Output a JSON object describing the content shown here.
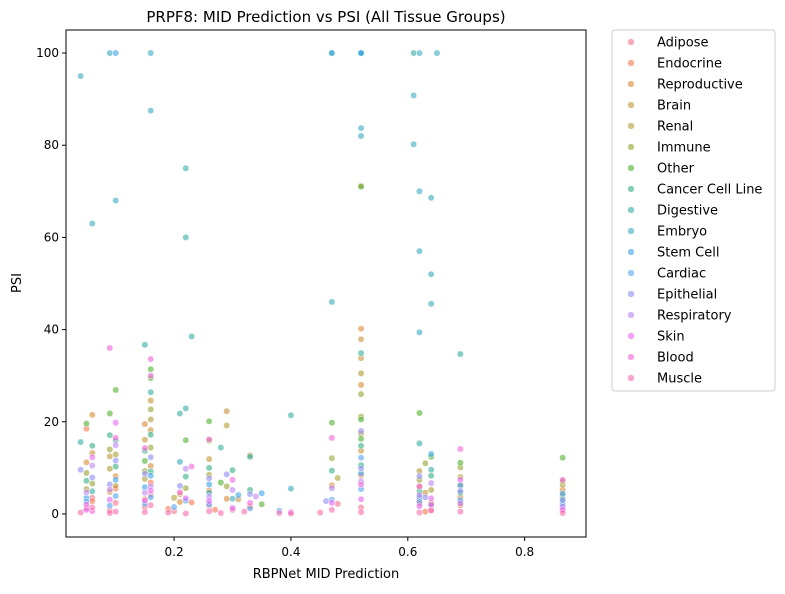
{
  "chart_data": {
    "type": "scatter",
    "title": "PRPF8: MID Prediction vs PSI (All Tissue Groups)",
    "xlabel": "RBPNet MID Prediction",
    "ylabel": "PSI",
    "xlim": [
      0.015,
      0.905
    ],
    "ylim": [
      -5,
      105
    ],
    "xticks": [
      0.2,
      0.4,
      0.6,
      0.8
    ],
    "xtick_labels": [
      "0.2",
      "0.4",
      "0.6",
      "0.8"
    ],
    "yticks": [
      0,
      20,
      40,
      60,
      80,
      100
    ],
    "ytick_labels": [
      "0",
      "20",
      "40",
      "60",
      "80",
      "100"
    ],
    "grid": false,
    "legend_position": "outside-right",
    "series": [
      {
        "name": "Adipose",
        "color": "#f77189",
        "points": [
          [
            0.05,
            1.2
          ],
          [
            0.06,
            3.5
          ],
          [
            0.09,
            0.8
          ],
          [
            0.1,
            2.4
          ],
          [
            0.15,
            1.5
          ],
          [
            0.16,
            4.2
          ],
          [
            0.2,
            0.6
          ],
          [
            0.26,
            1.8
          ],
          [
            0.3,
            0.9
          ],
          [
            0.48,
            2.2
          ],
          [
            0.52,
            1.4
          ],
          [
            0.62,
            3.1
          ],
          [
            0.64,
            0.7
          ],
          [
            0.69,
            2.6
          ],
          [
            0.865,
            1.0
          ]
        ]
      },
      {
        "name": "Endocrine",
        "color": "#f7754f",
        "points": [
          [
            0.05,
            18.5
          ],
          [
            0.06,
            2.8
          ],
          [
            0.1,
            5.5
          ],
          [
            0.15,
            3.2
          ],
          [
            0.16,
            6.8
          ],
          [
            0.19,
            1.1
          ],
          [
            0.23,
            2.5
          ],
          [
            0.27,
            0.9
          ],
          [
            0.33,
            1.6
          ],
          [
            0.52,
            8.4
          ],
          [
            0.62,
            2.2
          ],
          [
            0.63,
            0.5
          ],
          [
            0.69,
            1.9
          ]
        ]
      },
      {
        "name": "Reproductive",
        "color": "#dc8932",
        "points": [
          [
            0.05,
            11.2
          ],
          [
            0.06,
            21.5
          ],
          [
            0.09,
            4.8
          ],
          [
            0.1,
            8.2
          ],
          [
            0.15,
            19.5
          ],
          [
            0.16,
            10.4
          ],
          [
            0.21,
            2.6
          ],
          [
            0.26,
            5.1
          ],
          [
            0.29,
            3.3
          ],
          [
            0.47,
            6.2
          ],
          [
            0.52,
            71.2
          ],
          [
            0.52,
            40.2
          ],
          [
            0.52,
            28.0
          ],
          [
            0.62,
            5.8
          ],
          [
            0.64,
            2.4
          ],
          [
            0.69,
            3.7
          ],
          [
            0.865,
            5.2
          ]
        ]
      },
      {
        "name": "Brain",
        "color": "#c39532",
        "points": [
          [
            0.06,
            13.2
          ],
          [
            0.09,
            12.5
          ],
          [
            0.1,
            6.1
          ],
          [
            0.15,
            16.1
          ],
          [
            0.16,
            24.6
          ],
          [
            0.16,
            18.2
          ],
          [
            0.21,
            4.3
          ],
          [
            0.26,
            11.9
          ],
          [
            0.29,
            22.3
          ],
          [
            0.31,
            3.2
          ],
          [
            0.52,
            37.9
          ],
          [
            0.52,
            33.8
          ],
          [
            0.52,
            13.7
          ],
          [
            0.63,
            4.6
          ],
          [
            0.69,
            6.3
          ],
          [
            0.865,
            4.1
          ]
        ]
      },
      {
        "name": "Renal",
        "color": "#ae9d31",
        "points": [
          [
            0.05,
            5.4
          ],
          [
            0.09,
            9.8
          ],
          [
            0.1,
            12.9
          ],
          [
            0.15,
            7.6
          ],
          [
            0.16,
            20.5
          ],
          [
            0.2,
            3.5
          ],
          [
            0.26,
            8.5
          ],
          [
            0.29,
            19.2
          ],
          [
            0.33,
            12.7
          ],
          [
            0.48,
            7.8
          ],
          [
            0.52,
            30.5
          ],
          [
            0.52,
            17.4
          ],
          [
            0.62,
            9.3
          ],
          [
            0.64,
            5.2
          ],
          [
            0.69,
            8.0
          ],
          [
            0.865,
            6.3
          ]
        ]
      },
      {
        "name": "Immune",
        "color": "#97a431",
        "points": [
          [
            0.05,
            8.9
          ],
          [
            0.06,
            6.6
          ],
          [
            0.09,
            14.0
          ],
          [
            0.15,
            9.3
          ],
          [
            0.16,
            22.7
          ],
          [
            0.16,
            14.4
          ],
          [
            0.22,
            5.6
          ],
          [
            0.26,
            15.9
          ],
          [
            0.29,
            6.0
          ],
          [
            0.47,
            12.1
          ],
          [
            0.52,
            26.0
          ],
          [
            0.52,
            21.1
          ],
          [
            0.62,
            7.4
          ],
          [
            0.63,
            11.0
          ],
          [
            0.69,
            10.1
          ],
          [
            0.865,
            7.1
          ]
        ]
      },
      {
        "name": "Other",
        "color": "#50b131",
        "points": [
          [
            0.05,
            19.6
          ],
          [
            0.09,
            21.8
          ],
          [
            0.1,
            26.9
          ],
          [
            0.15,
            11.5
          ],
          [
            0.16,
            31.4
          ],
          [
            0.16,
            29.5
          ],
          [
            0.22,
            16.0
          ],
          [
            0.26,
            20.1
          ],
          [
            0.28,
            6.8
          ],
          [
            0.35,
            2.1
          ],
          [
            0.47,
            19.8
          ],
          [
            0.52,
            71.0
          ],
          [
            0.52,
            20.5
          ],
          [
            0.52,
            16.3
          ],
          [
            0.62,
            21.9
          ],
          [
            0.64,
            12.4
          ],
          [
            0.69,
            11.1
          ],
          [
            0.865,
            12.2
          ]
        ]
      },
      {
        "name": "Cancer Cell Line",
        "color": "#34af84",
        "points": [
          [
            0.05,
            7.2
          ],
          [
            0.06,
            14.8
          ],
          [
            0.09,
            17.1
          ],
          [
            0.1,
            10.3
          ],
          [
            0.15,
            13.7
          ],
          [
            0.16,
            17.2
          ],
          [
            0.16,
            9.2
          ],
          [
            0.22,
            8.1
          ],
          [
            0.26,
            10.0
          ],
          [
            0.3,
            9.5
          ],
          [
            0.33,
            5.2
          ],
          [
            0.47,
            9.4
          ],
          [
            0.52,
            14.8
          ],
          [
            0.52,
            10.6
          ],
          [
            0.62,
            4.9
          ],
          [
            0.64,
            8.3
          ],
          [
            0.69,
            4.6
          ],
          [
            0.865,
            3.4
          ]
        ]
      },
      {
        "name": "Digestive",
        "color": "#36ada4",
        "points": [
          [
            0.04,
            15.6
          ],
          [
            0.06,
            4.9
          ],
          [
            0.1,
            15.9
          ],
          [
            0.15,
            36.7
          ],
          [
            0.16,
            26.4
          ],
          [
            0.21,
            21.8
          ],
          [
            0.22,
            22.9
          ],
          [
            0.22,
            75.0
          ],
          [
            0.22,
            60.0
          ],
          [
            0.23,
            38.5
          ],
          [
            0.28,
            14.4
          ],
          [
            0.33,
            12.4
          ],
          [
            0.4,
            21.4
          ],
          [
            0.47,
            100.0
          ],
          [
            0.52,
            100.0
          ],
          [
            0.52,
            34.9
          ],
          [
            0.61,
            100.0
          ],
          [
            0.62,
            15.3
          ],
          [
            0.64,
            9.6
          ],
          [
            0.69,
            34.7
          ]
        ]
      },
      {
        "name": "Embryo",
        "color": "#38aabf",
        "points": [
          [
            0.04,
            95.0
          ],
          [
            0.06,
            63.0
          ],
          [
            0.09,
            100.0
          ],
          [
            0.1,
            68.0
          ],
          [
            0.16,
            87.5
          ],
          [
            0.16,
            100.0
          ],
          [
            0.21,
            11.3
          ],
          [
            0.26,
            4.6
          ],
          [
            0.3,
            3.3
          ],
          [
            0.4,
            5.5
          ],
          [
            0.47,
            46.0
          ],
          [
            0.52,
            83.7
          ],
          [
            0.52,
            82.0
          ],
          [
            0.52,
            100.0
          ],
          [
            0.61,
            90.8
          ],
          [
            0.61,
            80.2
          ],
          [
            0.62,
            100.0
          ],
          [
            0.62,
            70.0
          ],
          [
            0.64,
            68.6
          ],
          [
            0.64,
            52.0
          ],
          [
            0.64,
            45.6
          ],
          [
            0.62,
            57.0
          ],
          [
            0.62,
            39.4
          ],
          [
            0.65,
            100.0
          ],
          [
            0.865,
            2.5
          ]
        ]
      },
      {
        "name": "Stem Cell",
        "color": "#3ba3ec",
        "points": [
          [
            0.05,
            3.5
          ],
          [
            0.1,
            100.0
          ],
          [
            0.1,
            7.4
          ],
          [
            0.15,
            5.8
          ],
          [
            0.16,
            8.3
          ],
          [
            0.22,
            2.9
          ],
          [
            0.26,
            6.4
          ],
          [
            0.31,
            4.1
          ],
          [
            0.35,
            4.5
          ],
          [
            0.47,
            100.0
          ],
          [
            0.52,
            100.0
          ],
          [
            0.52,
            8.8
          ],
          [
            0.62,
            3.6
          ],
          [
            0.64,
            13.0
          ],
          [
            0.69,
            6.2
          ],
          [
            0.865,
            4.4
          ]
        ]
      },
      {
        "name": "Cardiac",
        "color": "#53a3f2",
        "points": [
          [
            0.05,
            2.7
          ],
          [
            0.09,
            1.8
          ],
          [
            0.1,
            3.9
          ],
          [
            0.15,
            2.2
          ],
          [
            0.16,
            3.6
          ],
          [
            0.2,
            1.5
          ],
          [
            0.26,
            2.1
          ],
          [
            0.33,
            1.2
          ],
          [
            0.38,
            0.7
          ],
          [
            0.47,
            3.1
          ],
          [
            0.52,
            5.4
          ],
          [
            0.52,
            12.2
          ],
          [
            0.62,
            2.6
          ],
          [
            0.64,
            1.9
          ],
          [
            0.69,
            3.0
          ],
          [
            0.865,
            2.0
          ]
        ]
      },
      {
        "name": "Epithelial",
        "color": "#8e8cf4",
        "points": [
          [
            0.04,
            9.6
          ],
          [
            0.06,
            7.9
          ],
          [
            0.09,
            6.4
          ],
          [
            0.1,
            11.6
          ],
          [
            0.15,
            8.7
          ],
          [
            0.16,
            12.3
          ],
          [
            0.21,
            6.1
          ],
          [
            0.26,
            7.7
          ],
          [
            0.29,
            8.6
          ],
          [
            0.33,
            4.3
          ],
          [
            0.46,
            2.8
          ],
          [
            0.52,
            18.0
          ],
          [
            0.52,
            9.9
          ],
          [
            0.62,
            8.2
          ],
          [
            0.63,
            3.6
          ],
          [
            0.69,
            5.0
          ],
          [
            0.865,
            3.0
          ]
        ]
      },
      {
        "name": "Respiratory",
        "color": "#bb83f4",
        "points": [
          [
            0.05,
            4.7
          ],
          [
            0.06,
            10.5
          ],
          [
            0.09,
            5.3
          ],
          [
            0.1,
            14.9
          ],
          [
            0.15,
            4.6
          ],
          [
            0.16,
            6.0
          ],
          [
            0.22,
            9.8
          ],
          [
            0.26,
            3.7
          ],
          [
            0.3,
            5.2
          ],
          [
            0.34,
            3.8
          ],
          [
            0.47,
            5.6
          ],
          [
            0.52,
            7.1
          ],
          [
            0.62,
            4.1
          ],
          [
            0.64,
            6.7
          ],
          [
            0.69,
            2.3
          ],
          [
            0.865,
            1.6
          ]
        ]
      },
      {
        "name": "Skin",
        "color": "#e866f4",
        "points": [
          [
            0.05,
            0.9
          ],
          [
            0.06,
            12.3
          ],
          [
            0.09,
            3.1
          ],
          [
            0.1,
            19.8
          ],
          [
            0.15,
            2.9
          ],
          [
            0.16,
            5.1
          ],
          [
            0.22,
            3.4
          ],
          [
            0.26,
            2.8
          ],
          [
            0.3,
            1.3
          ],
          [
            0.4,
            0.4
          ],
          [
            0.47,
            2.4
          ],
          [
            0.52,
            3.2
          ],
          [
            0.62,
            1.7
          ],
          [
            0.64,
            3.4
          ],
          [
            0.69,
            7.4
          ],
          [
            0.865,
            0.9
          ]
        ]
      },
      {
        "name": "Blood",
        "color": "#f562d9",
        "points": [
          [
            0.05,
            2.0
          ],
          [
            0.06,
            0.6
          ],
          [
            0.09,
            36.0
          ],
          [
            0.1,
            16.5
          ],
          [
            0.15,
            14.3
          ],
          [
            0.16,
            33.6
          ],
          [
            0.16,
            30.0
          ],
          [
            0.21,
            4.7
          ],
          [
            0.23,
            10.3
          ],
          [
            0.26,
            16.2
          ],
          [
            0.3,
            7.4
          ],
          [
            0.33,
            2.4
          ],
          [
            0.47,
            16.5
          ],
          [
            0.52,
            6.4
          ],
          [
            0.62,
            6.0
          ],
          [
            0.64,
            2.0
          ],
          [
            0.69,
            14.1
          ],
          [
            0.865,
            7.4
          ]
        ]
      },
      {
        "name": "Muscle",
        "color": "#f66bad",
        "points": [
          [
            0.04,
            0.3
          ],
          [
            0.06,
            1.4
          ],
          [
            0.09,
            0.2
          ],
          [
            0.1,
            0.5
          ],
          [
            0.15,
            0.4
          ],
          [
            0.16,
            1.9
          ],
          [
            0.19,
            0.3
          ],
          [
            0.22,
            0.1
          ],
          [
            0.26,
            0.6
          ],
          [
            0.28,
            0.2
          ],
          [
            0.32,
            0.5
          ],
          [
            0.38,
            0.2
          ],
          [
            0.4,
            0.1
          ],
          [
            0.45,
            0.3
          ],
          [
            0.47,
            0.9
          ],
          [
            0.52,
            0.4
          ],
          [
            0.62,
            0.3
          ],
          [
            0.64,
            0.8
          ],
          [
            0.69,
            0.5
          ],
          [
            0.865,
            0.2
          ]
        ]
      }
    ]
  }
}
